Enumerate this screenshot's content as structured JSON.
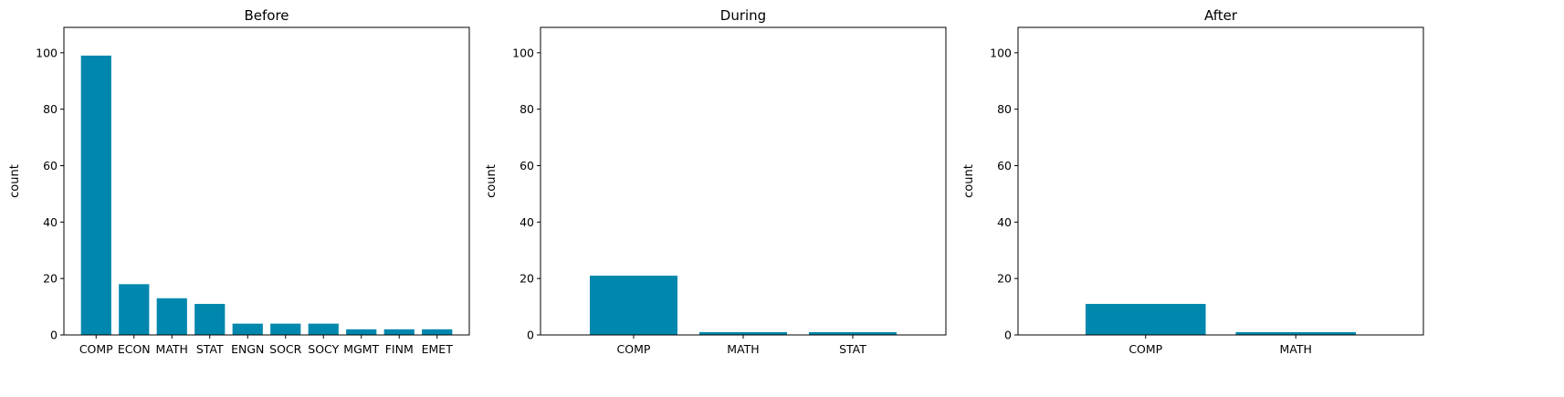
{
  "chart_data": [
    {
      "type": "bar",
      "title": "Before",
      "xlabel": "",
      "ylabel": "count",
      "ylim": [
        0,
        109
      ],
      "yticks": [
        0,
        20,
        40,
        60,
        80,
        100
      ],
      "categories": [
        "COMP",
        "ECON",
        "MATH",
        "STAT",
        "ENGN",
        "SOCR",
        "SOCY",
        "MGMT",
        "FINM",
        "EMET"
      ],
      "values": [
        99,
        18,
        13,
        11,
        4,
        4,
        4,
        2,
        2,
        2
      ],
      "color": "#0087ad"
    },
    {
      "type": "bar",
      "title": "During",
      "xlabel": "",
      "ylabel": "count",
      "ylim": [
        0,
        109
      ],
      "yticks": [
        0,
        20,
        40,
        60,
        80,
        100
      ],
      "categories": [
        "COMP",
        "MATH",
        "STAT"
      ],
      "values": [
        21,
        1,
        1
      ],
      "color": "#0087ad"
    },
    {
      "type": "bar",
      "title": "After",
      "xlabel": "",
      "ylabel": "count",
      "ylim": [
        0,
        109
      ],
      "yticks": [
        0,
        20,
        40,
        60,
        80,
        100
      ],
      "categories": [
        "COMP",
        "MATH"
      ],
      "values": [
        11,
        1
      ],
      "color": "#0087ad"
    }
  ]
}
